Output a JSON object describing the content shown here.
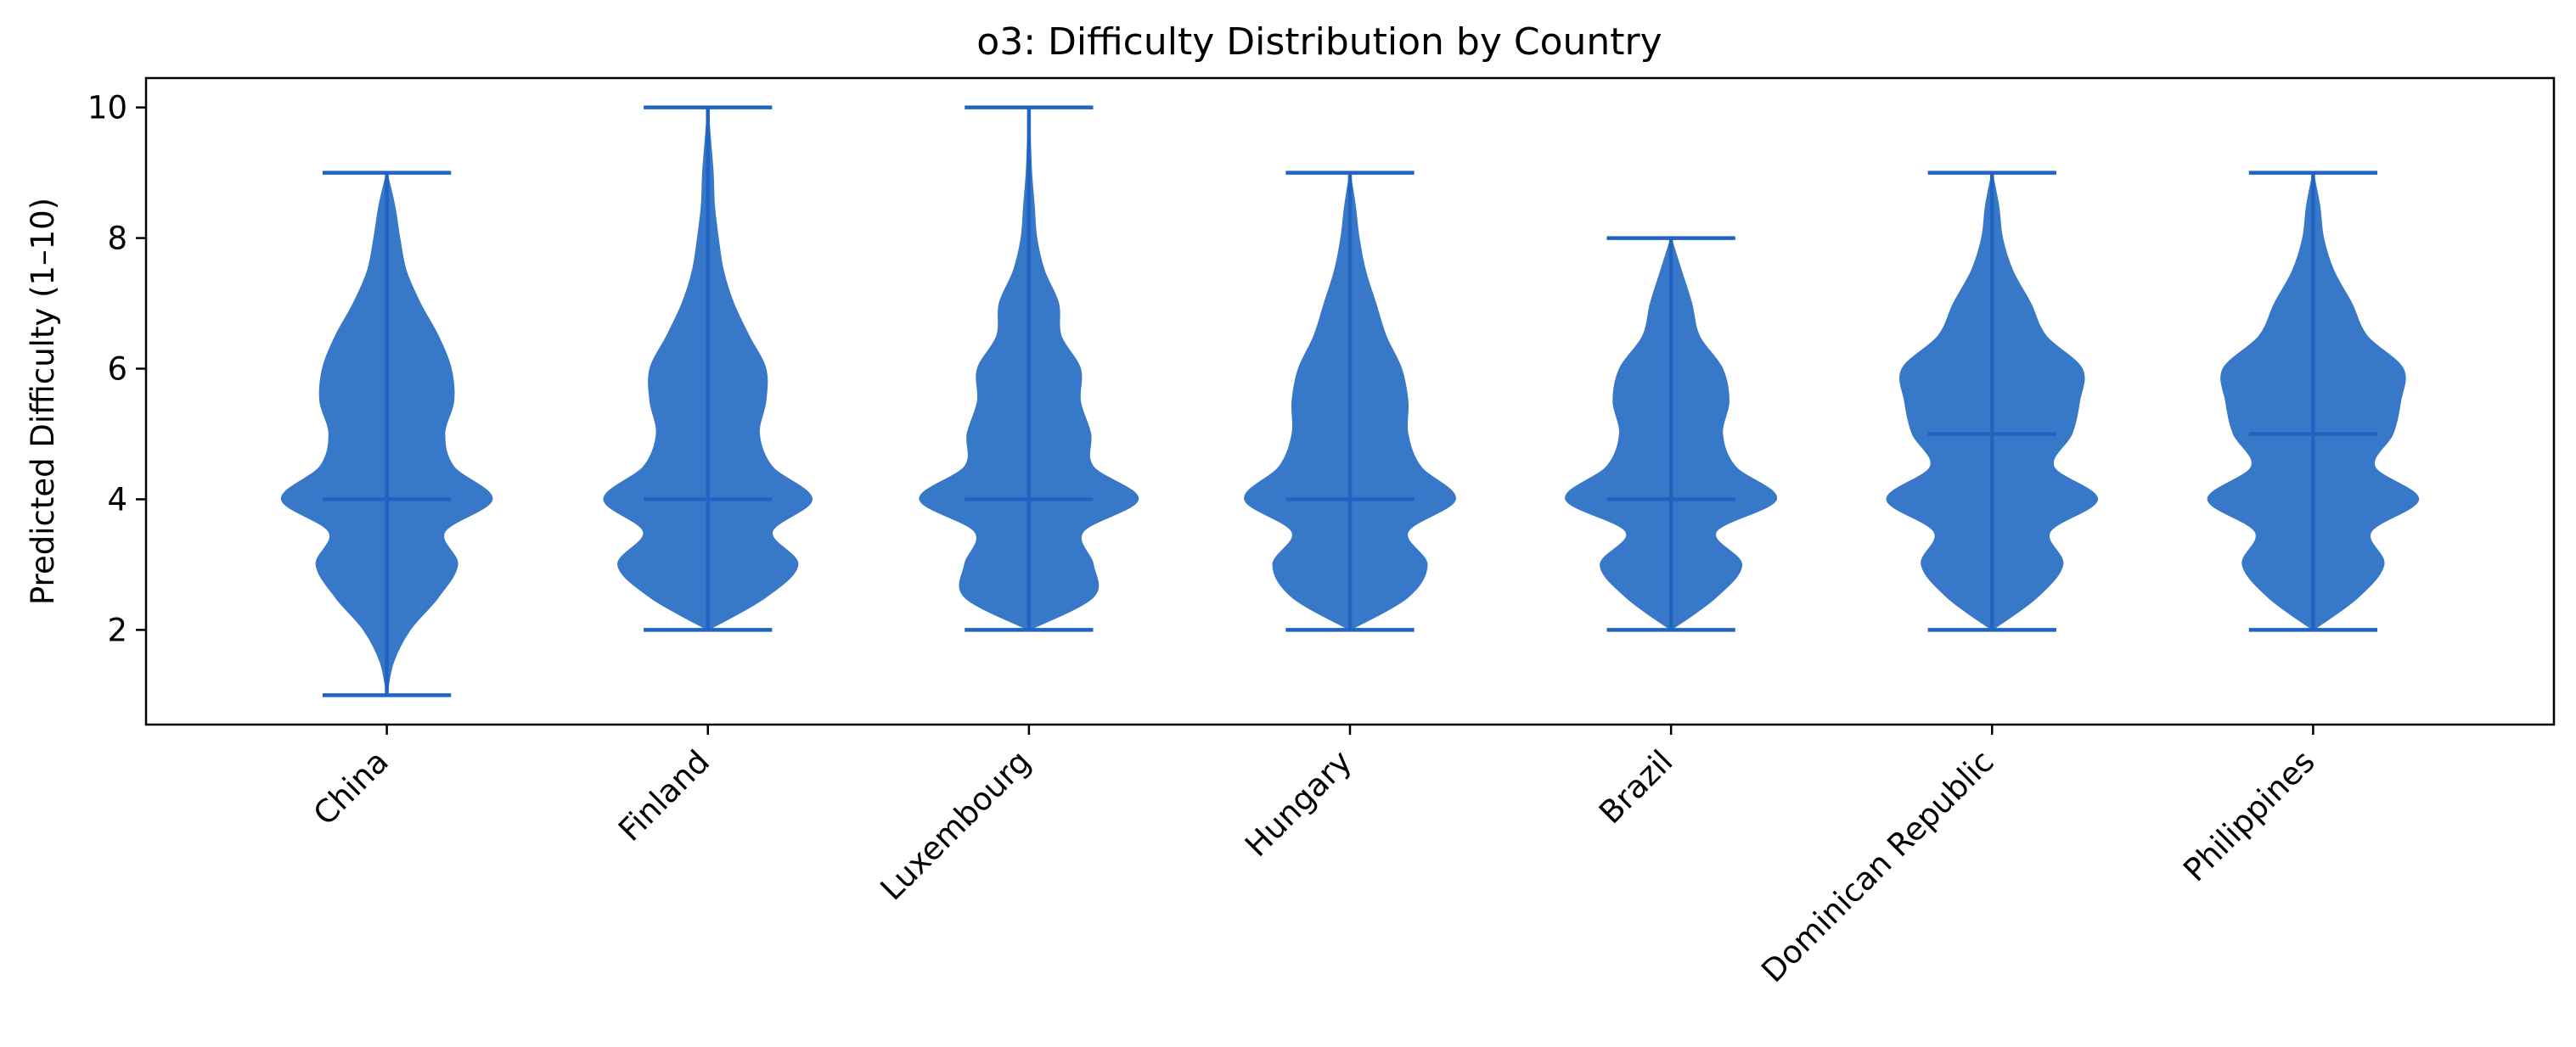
{
  "chart_data": {
    "type": "violin",
    "title": "o3: Difficulty Distribution by Country",
    "xlabel": "",
    "ylabel": "Predicted Difficulty (1–10)",
    "ylim": [
      0.55,
      10.45
    ],
    "yticks": [
      2,
      4,
      6,
      8,
      10
    ],
    "ytick_labels": [
      "2",
      "4",
      "6",
      "8",
      "10"
    ],
    "categories": [
      "China",
      "Finland",
      "Luxembourg",
      "Hungary",
      "Brazil",
      "Dominican Republic",
      "Philippines"
    ],
    "series": [
      {
        "name": "China",
        "min": 1,
        "max": 9,
        "median": 4,
        "density": [
          [
            1,
            0.0
          ],
          [
            1.5,
            0.05
          ],
          [
            2,
            0.18
          ],
          [
            2.5,
            0.4
          ],
          [
            3,
            0.55
          ],
          [
            3.5,
            0.45
          ],
          [
            4,
            0.82
          ],
          [
            4.5,
            0.52
          ],
          [
            5,
            0.45
          ],
          [
            5.5,
            0.52
          ],
          [
            6,
            0.5
          ],
          [
            6.5,
            0.4
          ],
          [
            7,
            0.26
          ],
          [
            7.5,
            0.15
          ],
          [
            8,
            0.1
          ],
          [
            8.5,
            0.06
          ],
          [
            9,
            0.0
          ]
        ]
      },
      {
        "name": "Finland",
        "min": 2,
        "max": 10,
        "median": 4,
        "density": [
          [
            2,
            0.0
          ],
          [
            2.5,
            0.45
          ],
          [
            3,
            0.7
          ],
          [
            3.5,
            0.5
          ],
          [
            4,
            0.81
          ],
          [
            4.5,
            0.5
          ],
          [
            5,
            0.4
          ],
          [
            5.5,
            0.45
          ],
          [
            6,
            0.45
          ],
          [
            6.5,
            0.32
          ],
          [
            7,
            0.2
          ],
          [
            7.5,
            0.12
          ],
          [
            8,
            0.08
          ],
          [
            8.5,
            0.05
          ],
          [
            9,
            0.04
          ],
          [
            9.5,
            0.02
          ],
          [
            10,
            0.0
          ]
        ]
      },
      {
        "name": "Luxembourg",
        "min": 2,
        "max": 10,
        "median": 4,
        "density": [
          [
            2,
            0.0
          ],
          [
            2.5,
            0.5
          ],
          [
            3,
            0.5
          ],
          [
            3.5,
            0.42
          ],
          [
            4,
            0.85
          ],
          [
            4.5,
            0.5
          ],
          [
            5,
            0.48
          ],
          [
            5.5,
            0.4
          ],
          [
            6,
            0.4
          ],
          [
            6.5,
            0.25
          ],
          [
            7,
            0.23
          ],
          [
            7.5,
            0.12
          ],
          [
            8,
            0.06
          ],
          [
            8.5,
            0.04
          ],
          [
            9,
            0.02
          ],
          [
            9.5,
            0.01
          ],
          [
            10,
            0.0
          ]
        ]
      },
      {
        "name": "Hungary",
        "min": 2,
        "max": 9,
        "median": 4,
        "density": [
          [
            2,
            0.0
          ],
          [
            2.5,
            0.45
          ],
          [
            3,
            0.6
          ],
          [
            3.5,
            0.45
          ],
          [
            4,
            0.82
          ],
          [
            4.5,
            0.55
          ],
          [
            5,
            0.45
          ],
          [
            5.5,
            0.45
          ],
          [
            6,
            0.4
          ],
          [
            6.5,
            0.28
          ],
          [
            7,
            0.2
          ],
          [
            7.5,
            0.12
          ],
          [
            8,
            0.07
          ],
          [
            8.5,
            0.04
          ],
          [
            9,
            0.0
          ]
        ]
      },
      {
        "name": "Brazil",
        "min": 2,
        "max": 8,
        "median": 4,
        "density": [
          [
            2,
            0.0
          ],
          [
            2.5,
            0.35
          ],
          [
            3,
            0.55
          ],
          [
            3.5,
            0.35
          ],
          [
            4,
            0.82
          ],
          [
            4.5,
            0.5
          ],
          [
            5,
            0.4
          ],
          [
            5.5,
            0.45
          ],
          [
            6,
            0.4
          ],
          [
            6.5,
            0.22
          ],
          [
            7,
            0.16
          ],
          [
            7.5,
            0.08
          ],
          [
            8,
            0.0
          ]
        ]
      },
      {
        "name": "Dominican Republic",
        "min": 2,
        "max": 9,
        "median": 5,
        "density": [
          [
            2,
            0.0
          ],
          [
            2.5,
            0.35
          ],
          [
            3,
            0.55
          ],
          [
            3.5,
            0.45
          ],
          [
            4,
            0.82
          ],
          [
            4.5,
            0.48
          ],
          [
            5,
            0.62
          ],
          [
            5.5,
            0.68
          ],
          [
            6,
            0.7
          ],
          [
            6.5,
            0.42
          ],
          [
            7,
            0.3
          ],
          [
            7.5,
            0.16
          ],
          [
            8,
            0.08
          ],
          [
            8.5,
            0.05
          ],
          [
            9,
            0.0
          ]
        ]
      },
      {
        "name": "Philippines",
        "min": 2,
        "max": 9,
        "median": 5,
        "density": [
          [
            2,
            0.0
          ],
          [
            2.5,
            0.35
          ],
          [
            3,
            0.55
          ],
          [
            3.5,
            0.45
          ],
          [
            4,
            0.82
          ],
          [
            4.5,
            0.48
          ],
          [
            5,
            0.62
          ],
          [
            5.5,
            0.68
          ],
          [
            6,
            0.7
          ],
          [
            6.5,
            0.42
          ],
          [
            7,
            0.3
          ],
          [
            7.5,
            0.16
          ],
          [
            8,
            0.08
          ],
          [
            8.5,
            0.05
          ],
          [
            9,
            0.0
          ]
        ]
      }
    ],
    "colors": {
      "fill": "#3878c8",
      "line": "#1f64c0",
      "axis": "#000000",
      "background": "#ffffff"
    },
    "grid": false,
    "legend": "none"
  }
}
